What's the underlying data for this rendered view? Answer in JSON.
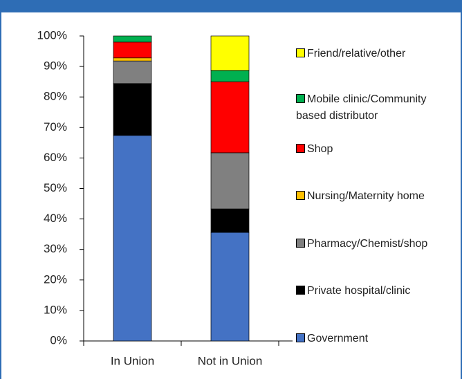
{
  "chart_data": {
    "type": "stacked-bar",
    "categories": [
      "In Union",
      "Not in Union"
    ],
    "series": [
      {
        "name": "Government",
        "color": "#4472c4",
        "values": [
          67.4,
          35.6
        ]
      },
      {
        "name": "Private hospital/clinic",
        "color": "#000000",
        "values": [
          17,
          7.7
        ]
      },
      {
        "name": "Pharmacy/Chemist/shop",
        "color": "#808080",
        "values": [
          7.4,
          18.4
        ]
      },
      {
        "name": "Nursing/Maternity home",
        "color": "#ffc000",
        "values": [
          1,
          0
        ]
      },
      {
        "name": "Shop",
        "color": "#ff0000",
        "values": [
          5.2,
          23.3
        ]
      },
      {
        "name": "Mobile clinic/Community based distributor",
        "color": "#00b050",
        "values": [
          2,
          3.7
        ]
      },
      {
        "name": "Friend/relative/other",
        "color": "#ffff00",
        "values": [
          0,
          11.3
        ]
      }
    ],
    "ylim": [
      0,
      100
    ],
    "yticks": [
      {
        "value": 0,
        "label": "0%"
      },
      {
        "value": 10,
        "label": "10%"
      },
      {
        "value": 20,
        "label": "20%"
      },
      {
        "value": 30,
        "label": "30%"
      },
      {
        "value": 40,
        "label": "40%"
      },
      {
        "value": 50,
        "label": "50%"
      },
      {
        "value": 60,
        "label": "60%"
      },
      {
        "value": 70,
        "label": "70%"
      },
      {
        "value": 80,
        "label": "80%"
      },
      {
        "value": 90,
        "label": "90%"
      },
      {
        "value": 100,
        "label": "100%"
      }
    ],
    "legend": "right"
  }
}
